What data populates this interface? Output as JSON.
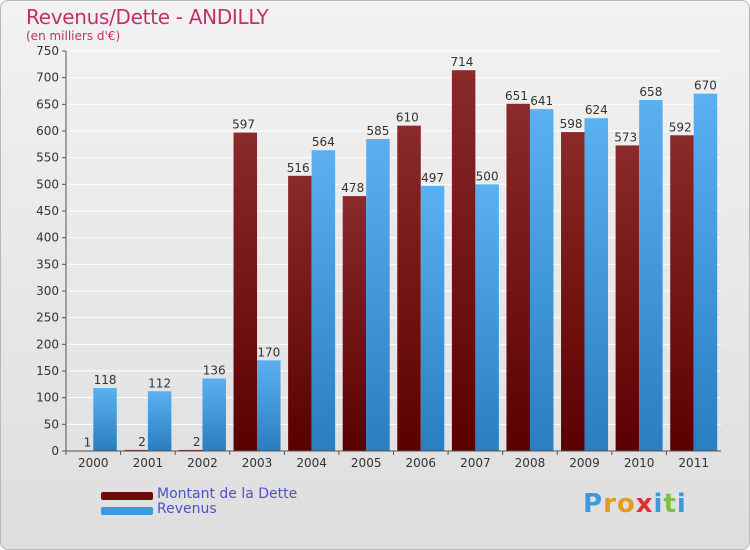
{
  "title": "Revenus/Dette - ANDILLY",
  "subtitle": "(en milliers d'€)",
  "colors": {
    "debt": "#6b0a0a",
    "revenue": "#3a9ae0",
    "title": "#c0306e",
    "legend_text": "#5050c8"
  },
  "legend": {
    "debt_label": "Montant de la Dette",
    "revenue_label": "Revenus"
  },
  "logo": {
    "text": "Proxiti",
    "letters": [
      "P",
      "r",
      "o",
      "x",
      "i",
      "t",
      "i"
    ]
  },
  "chart_data": {
    "type": "bar",
    "title": "Revenus/Dette - ANDILLY",
    "subtitle": "(en milliers d'€)",
    "categories": [
      "2000",
      "2001",
      "2002",
      "2003",
      "2004",
      "2005",
      "2006",
      "2007",
      "2008",
      "2009",
      "2010",
      "2011"
    ],
    "series": [
      {
        "name": "Montant de la Dette",
        "values": [
          1,
          2,
          2,
          597,
          516,
          478,
          610,
          714,
          651,
          598,
          573,
          592
        ]
      },
      {
        "name": "Revenus",
        "values": [
          118,
          112,
          136,
          170,
          564,
          585,
          497,
          500,
          641,
          624,
          658,
          670
        ]
      }
    ],
    "ylim": [
      0,
      750
    ],
    "yticks": [
      0,
      50,
      100,
      150,
      200,
      250,
      300,
      350,
      400,
      450,
      500,
      550,
      600,
      650,
      700,
      750
    ],
    "grid": true,
    "legend_position": "bottom-left"
  }
}
